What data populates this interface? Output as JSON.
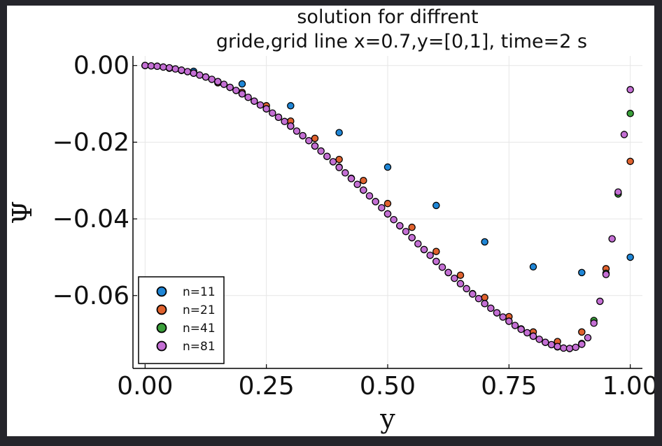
{
  "chart_data": {
    "type": "scatter",
    "title_lines": [
      "solution for diffrent",
      "gride,grid line x=0.7,y=[0,1], time=2 s"
    ],
    "xlabel": "y",
    "ylabel": "Ψ",
    "xlim": [
      -0.025,
      1.025
    ],
    "ylim": [
      -0.079,
      0.0025
    ],
    "xticks": [
      0.0,
      0.25,
      0.5,
      0.75,
      1.0
    ],
    "xtick_labels": [
      "0.00",
      "0.25",
      "0.50",
      "0.75",
      "1.00"
    ],
    "yticks": [
      0.0,
      -0.02,
      -0.04,
      -0.06
    ],
    "ytick_labels": [
      "0.00",
      "−0.02",
      "−0.04",
      "−0.06"
    ],
    "grid": true,
    "legend_position": "bottom-left",
    "series": [
      {
        "name": "n=11",
        "color": "#1f86d6",
        "x": [
          0.0,
          0.1,
          0.2,
          0.3,
          0.4,
          0.5,
          0.6,
          0.7,
          0.8,
          0.9,
          1.0
        ],
        "y": [
          0.0,
          -0.0015,
          -0.0048,
          -0.0105,
          -0.0175,
          -0.0265,
          -0.0365,
          -0.046,
          -0.0525,
          -0.054,
          -0.05
        ]
      },
      {
        "name": "n=21",
        "color": "#e0622e",
        "x": [
          0.0,
          0.05,
          0.1,
          0.15,
          0.2,
          0.25,
          0.3,
          0.35,
          0.4,
          0.45,
          0.5,
          0.55,
          0.6,
          0.65,
          0.7,
          0.75,
          0.8,
          0.85,
          0.9,
          0.95,
          1.0
        ],
        "y": [
          0.0,
          -0.0007,
          -0.002,
          -0.0045,
          -0.007,
          -0.0105,
          -0.0145,
          -0.019,
          -0.0245,
          -0.03,
          -0.036,
          -0.0422,
          -0.0485,
          -0.0547,
          -0.0605,
          -0.0655,
          -0.0695,
          -0.072,
          -0.0695,
          -0.053,
          -0.025
        ]
      },
      {
        "name": "n=41",
        "color": "#3a9f3a",
        "x": [
          0.0,
          0.025,
          0.05,
          0.075,
          0.1,
          0.125,
          0.15,
          0.175,
          0.2,
          0.225,
          0.25,
          0.275,
          0.3,
          0.325,
          0.35,
          0.375,
          0.4,
          0.425,
          0.45,
          0.475,
          0.5,
          0.525,
          0.55,
          0.575,
          0.6,
          0.625,
          0.65,
          0.675,
          0.7,
          0.725,
          0.75,
          0.775,
          0.8,
          0.825,
          0.85,
          0.875,
          0.9,
          0.925,
          0.95,
          0.975,
          1.0
        ],
        "y": [
          0.0,
          -0.0002,
          -0.0007,
          -0.0013,
          -0.002,
          -0.003,
          -0.0042,
          -0.0057,
          -0.0074,
          -0.0093,
          -0.0113,
          -0.0135,
          -0.0158,
          -0.0183,
          -0.021,
          -0.0237,
          -0.0265,
          -0.0294,
          -0.0325,
          -0.0355,
          -0.0387,
          -0.0418,
          -0.0449,
          -0.048,
          -0.0511,
          -0.054,
          -0.0569,
          -0.0595,
          -0.0621,
          -0.0645,
          -0.0667,
          -0.0687,
          -0.0706,
          -0.0722,
          -0.0734,
          -0.0738,
          -0.0725,
          -0.0665,
          -0.0542,
          -0.0335,
          -0.0125
        ]
      },
      {
        "name": "n=81",
        "color": "#c46fd4",
        "x": [
          0.0,
          0.0125,
          0.025,
          0.0375,
          0.05,
          0.0625,
          0.075,
          0.0875,
          0.1,
          0.1125,
          0.125,
          0.1375,
          0.15,
          0.1625,
          0.175,
          0.1875,
          0.2,
          0.2125,
          0.225,
          0.2375,
          0.25,
          0.2625,
          0.275,
          0.2875,
          0.3,
          0.3125,
          0.325,
          0.3375,
          0.35,
          0.3625,
          0.375,
          0.3875,
          0.4,
          0.4125,
          0.425,
          0.4375,
          0.45,
          0.4625,
          0.475,
          0.4875,
          0.5,
          0.5125,
          0.525,
          0.5375,
          0.55,
          0.5625,
          0.575,
          0.5875,
          0.6,
          0.6125,
          0.625,
          0.6375,
          0.65,
          0.6625,
          0.675,
          0.6875,
          0.7,
          0.7125,
          0.725,
          0.7375,
          0.75,
          0.7625,
          0.775,
          0.7875,
          0.8,
          0.8125,
          0.825,
          0.8375,
          0.85,
          0.8625,
          0.875,
          0.8875,
          0.9,
          0.9125,
          0.925,
          0.9375,
          0.95,
          0.9625,
          0.975,
          0.9875,
          1.0
        ],
        "y": [
          0.0,
          -0.0001,
          -0.0002,
          -0.0004,
          -0.0006,
          -0.0009,
          -0.0012,
          -0.0016,
          -0.002,
          -0.0025,
          -0.003,
          -0.0036,
          -0.0042,
          -0.0049,
          -0.0057,
          -0.0065,
          -0.0074,
          -0.0083,
          -0.0093,
          -0.0103,
          -0.0113,
          -0.0124,
          -0.0135,
          -0.0146,
          -0.0158,
          -0.0171,
          -0.0183,
          -0.0196,
          -0.021,
          -0.0223,
          -0.0237,
          -0.0251,
          -0.0266,
          -0.028,
          -0.0295,
          -0.031,
          -0.0325,
          -0.034,
          -0.0355,
          -0.0371,
          -0.0387,
          -0.0402,
          -0.0418,
          -0.0433,
          -0.0449,
          -0.0465,
          -0.048,
          -0.0495,
          -0.0511,
          -0.0526,
          -0.054,
          -0.0555,
          -0.0569,
          -0.0582,
          -0.0596,
          -0.0608,
          -0.0621,
          -0.0633,
          -0.0645,
          -0.0656,
          -0.0667,
          -0.0678,
          -0.0688,
          -0.0697,
          -0.0706,
          -0.0714,
          -0.0722,
          -0.0728,
          -0.0733,
          -0.0737,
          -0.0738,
          -0.0735,
          -0.0727,
          -0.071,
          -0.0672,
          -0.0615,
          -0.0545,
          -0.0452,
          -0.033,
          -0.018,
          -0.0063
        ]
      }
    ]
  }
}
